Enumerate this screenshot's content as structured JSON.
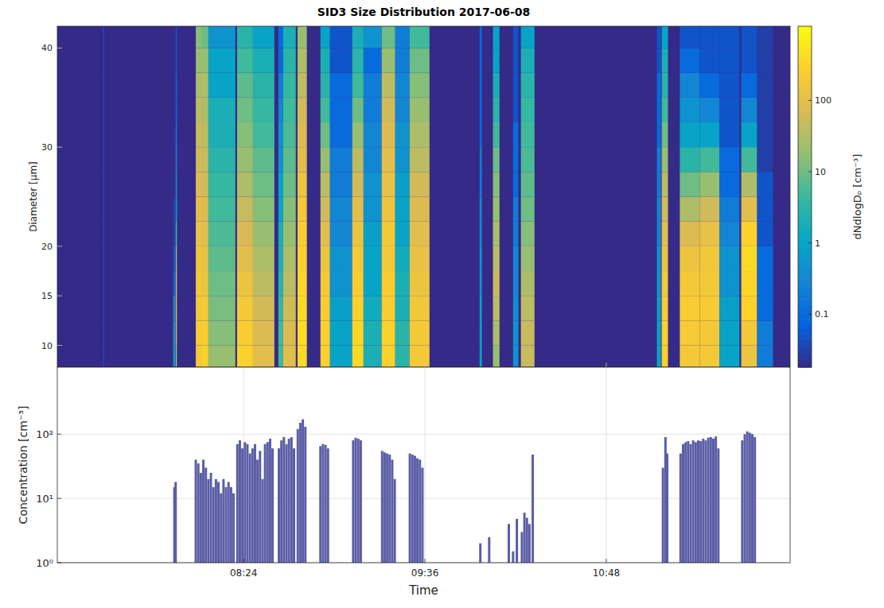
{
  "chart_data": [
    {
      "type": "heatmap",
      "title": "SID3 Size Distribution 2017-06-08",
      "y_label": "Diameter [µm]",
      "xlim": [
        430,
        721
      ],
      "xticks": [
        504,
        576,
        648
      ],
      "ylim": [
        7.8,
        42.2
      ],
      "yticks": [
        10,
        15,
        20,
        30,
        40
      ],
      "tick_labels": "y",
      "log": true,
      "diameter_bins": [
        7.5,
        10,
        12.5,
        15,
        17.5,
        20,
        22.5,
        25,
        27.5,
        30,
        32.5,
        35,
        37.5,
        40,
        42.5
      ],
      "cells": [
        {
          "t0": 448.2,
          "t1": 448.6,
          "values": [
            0.05,
            0.05,
            0.05,
            0.05,
            0.05,
            0.05,
            0.05,
            0.05,
            0.05,
            0.05,
            0.05,
            0.05,
            0.05,
            0.05
          ]
        },
        {
          "t0": 476,
          "t1": 476.8,
          "values": [
            0.5,
            0.5,
            0.3,
            0.1,
            0.05,
            0.03,
            0.03,
            0.02,
            0.02,
            0.02,
            0.02,
            0.02,
            0.02,
            0.02
          ]
        },
        {
          "t0": 477,
          "t1": 477.5,
          "values": [
            20,
            50,
            80,
            50,
            20,
            5,
            1,
            0.5,
            0.3,
            0.2,
            0.1,
            0.1,
            0.05,
            0.05
          ]
        },
        {
          "t0": 485,
          "t1": 487.5,
          "values": [
            200,
            220,
            200,
            180,
            150,
            120,
            100,
            80,
            60,
            50,
            40,
            30,
            20,
            15
          ]
        },
        {
          "t0": 487.5,
          "t1": 490,
          "values": [
            300,
            250,
            200,
            150,
            120,
            100,
            80,
            60,
            50,
            40,
            30,
            30,
            20,
            10
          ]
        },
        {
          "t0": 490,
          "t1": 500.7,
          "values": [
            20,
            15,
            12,
            10,
            8,
            6,
            5,
            4,
            3,
            2,
            2,
            1,
            1,
            0.5
          ]
        },
        {
          "t0": 501.4,
          "t1": 507.7,
          "values": [
            300,
            250,
            200,
            150,
            100,
            70,
            50,
            30,
            20,
            15,
            10,
            8,
            5,
            3
          ]
        },
        {
          "t0": 507.7,
          "t1": 516.2,
          "values": [
            100,
            80,
            60,
            40,
            30,
            20,
            15,
            10,
            8,
            5,
            4,
            3,
            2,
            1
          ]
        },
        {
          "t0": 517.8,
          "t1": 519.7,
          "values": [
            5,
            5,
            4,
            3,
            2,
            2,
            1,
            1,
            0.5,
            0.5,
            0.3,
            0.2,
            0.1,
            0.1
          ]
        },
        {
          "t0": 519.7,
          "t1": 524.7,
          "values": [
            100,
            80,
            60,
            40,
            30,
            20,
            15,
            10,
            8,
            6,
            5,
            4,
            3,
            2
          ]
        },
        {
          "t0": 525.4,
          "t1": 529.1,
          "values": [
            400,
            450,
            400,
            350,
            300,
            250,
            200,
            150,
            100,
            80,
            60,
            40,
            30,
            20
          ]
        },
        {
          "t0": 534.5,
          "t1": 538.3,
          "values": [
            300,
            300,
            250,
            200,
            150,
            100,
            60,
            40,
            20,
            10,
            5,
            3,
            2,
            1
          ]
        },
        {
          "t0": 538.3,
          "t1": 547.1,
          "values": [
            1,
            1,
            0.8,
            0.5,
            0.5,
            0.3,
            0.3,
            0.2,
            0.2,
            0.1,
            0.1,
            0.1,
            0.05,
            0.05
          ]
        },
        {
          "t0": 547.1,
          "t1": 551.6,
          "values": [
            400,
            350,
            300,
            250,
            200,
            150,
            100,
            60,
            40,
            20,
            10,
            5,
            3,
            2
          ]
        },
        {
          "t0": 551.6,
          "t1": 558.8,
          "values": [
            2,
            2,
            1.5,
            1,
            1,
            0.8,
            0.5,
            0.5,
            0.3,
            0.3,
            0.2,
            0.2,
            0.1,
            0.5
          ]
        },
        {
          "t0": 558.8,
          "t1": 564.2,
          "values": [
            300,
            300,
            250,
            250,
            200,
            200,
            150,
            120,
            100,
            80,
            60,
            40,
            20,
            10
          ]
        },
        {
          "t0": 564.2,
          "t1": 569.9,
          "values": [
            3,
            3,
            2,
            2,
            1.5,
            1,
            1,
            0.8,
            0.5,
            0.5,
            0.3,
            0.3,
            0.2,
            0.2
          ]
        },
        {
          "t0": 569.9,
          "t1": 577.8,
          "values": [
            200,
            200,
            180,
            150,
            120,
            100,
            80,
            60,
            40,
            30,
            20,
            15,
            10,
            5
          ]
        },
        {
          "t0": 597.7,
          "t1": 598.6,
          "values": [
            1,
            1,
            0.8,
            0.5,
            0.5,
            0.3,
            0.3,
            0.2,
            0.2,
            0.1,
            0.1,
            0.1,
            0.1,
            0.1
          ]
        },
        {
          "t0": 603,
          "t1": 605.6,
          "values": [
            20,
            30,
            40,
            50,
            40,
            30,
            20,
            15,
            10,
            5,
            3,
            2,
            1,
            1
          ]
        },
        {
          "t0": 611,
          "t1": 613.1,
          "values": [
            0.5,
            0.5,
            0.4,
            0.3,
            0.3,
            0.2,
            0.2,
            0.1,
            0.1,
            0.1,
            0.05,
            0.05,
            0.05,
            0.05
          ]
        },
        {
          "t0": 614.1,
          "t1": 619.5,
          "values": [
            50,
            50,
            40,
            30,
            20,
            15,
            10,
            8,
            6,
            5,
            4,
            3,
            2,
            1
          ]
        },
        {
          "t0": 668.1,
          "t1": 669.7,
          "values": [
            1,
            1,
            0.8,
            0.5,
            0.5,
            0.3,
            0.3,
            0.2,
            0.2,
            0.1,
            0.1,
            0.1,
            0.05,
            0.05
          ]
        },
        {
          "t0": 670,
          "t1": 672.5,
          "values": [
            300,
            300,
            250,
            200,
            150,
            100,
            60,
            40,
            20,
            10,
            5,
            3,
            2,
            1
          ]
        },
        {
          "t0": 677.2,
          "t1": 685.1,
          "values": [
            200,
            220,
            250,
            200,
            150,
            80,
            30,
            10,
            3,
            1,
            0.5,
            0.3,
            0.1,
            0.05
          ]
        },
        {
          "t0": 685.1,
          "t1": 693,
          "values": [
            200,
            200,
            220,
            200,
            180,
            120,
            60,
            20,
            5,
            1,
            0.3,
            0.1,
            0.05,
            0.05
          ]
        },
        {
          "t0": 693,
          "t1": 700.9,
          "values": [
            1,
            1,
            0.8,
            0.5,
            0.5,
            0.3,
            0.2,
            0.1,
            0.1,
            0.05,
            0.05,
            0.05,
            0.05,
            0.05
          ]
        },
        {
          "t0": 701.6,
          "t1": 707.9,
          "values": [
            150,
            200,
            300,
            350,
            400,
            300,
            100,
            30,
            5,
            1,
            0.3,
            0.1,
            0.05,
            0.05
          ]
        },
        {
          "t0": 707.9,
          "t1": 714.2,
          "values": [
            0.2,
            0.2,
            0.1,
            0.1,
            0.1,
            0.05,
            0.05,
            0.05,
            0.03,
            0.03,
            0.03,
            0.03,
            0.03,
            0.03
          ]
        }
      ],
      "colorbar": {
        "lim": [
          0.018,
          1100
        ],
        "ticks": [
          0.1,
          1,
          10,
          100
        ],
        "label": "dNdlogDₚ [cm⁻³]"
      }
    },
    {
      "type": "bar",
      "x_label": "Time",
      "y_label": "Concentration [cm⁻³]",
      "xlim": [
        430,
        721
      ],
      "xticks": [
        {
          "value": 504,
          "label": "08:24"
        },
        {
          "value": 576,
          "label": "09:36"
        },
        {
          "value": 648,
          "label": "10:48"
        }
      ],
      "ylim": [
        1,
        1100
      ],
      "yticks": [
        {
          "value": 1,
          "label": "10⁰"
        },
        {
          "value": 10,
          "label": "10¹"
        },
        {
          "value": 100,
          "label": "10²"
        }
      ],
      "log": "y",
      "grid": true,
      "color": "#5b5ea6",
      "x": [
        476.5,
        477,
        485,
        486,
        487,
        488,
        489,
        490,
        491,
        492,
        493,
        494,
        495,
        496,
        497,
        498,
        499,
        500,
        501.5,
        502.5,
        503.5,
        504.5,
        505.5,
        506.5,
        507.5,
        508.5,
        509.5,
        510.5,
        511.5,
        512.5,
        513.5,
        514.5,
        515.5,
        518,
        519,
        520,
        521,
        522,
        523,
        524,
        525.5,
        526.5,
        527.5,
        528.5,
        534.5,
        535.5,
        536.5,
        537.5,
        547.5,
        548.5,
        549.5,
        550.5,
        559,
        560,
        561,
        562,
        563,
        564,
        570,
        571,
        572,
        573,
        574,
        575,
        598,
        601.5,
        609.3,
        611,
        612.5,
        614.5,
        615.5,
        616.5,
        617.5,
        618.8,
        670.5,
        671.5,
        672.2,
        677.5,
        678.5,
        679.5,
        680.5,
        681.5,
        682.5,
        683.5,
        684.5,
        685.5,
        686.5,
        687.5,
        688.5,
        689.5,
        690.5,
        691.5,
        692.5,
        702,
        703,
        704,
        705,
        706,
        707
      ],
      "values": [
        15,
        18,
        40,
        35,
        25,
        40,
        30,
        20,
        25,
        15,
        20,
        18,
        12,
        20,
        15,
        18,
        15,
        12,
        70,
        80,
        60,
        75,
        70,
        50,
        60,
        70,
        40,
        55,
        20,
        70,
        75,
        85,
        60,
        60,
        80,
        90,
        70,
        85,
        90,
        60,
        120,
        150,
        170,
        130,
        65,
        70,
        68,
        60,
        80,
        88,
        85,
        80,
        55,
        52,
        50,
        48,
        40,
        20,
        50,
        48,
        46,
        42,
        40,
        30,
        2,
        2.5,
        4,
        1.5,
        4.8,
        3,
        6,
        5,
        4,
        48,
        30,
        90,
        50,
        50,
        70,
        75,
        78,
        70,
        80,
        75,
        80,
        78,
        85,
        80,
        88,
        90,
        85,
        92,
        60,
        80,
        100,
        110,
        105,
        100,
        90
      ]
    }
  ]
}
